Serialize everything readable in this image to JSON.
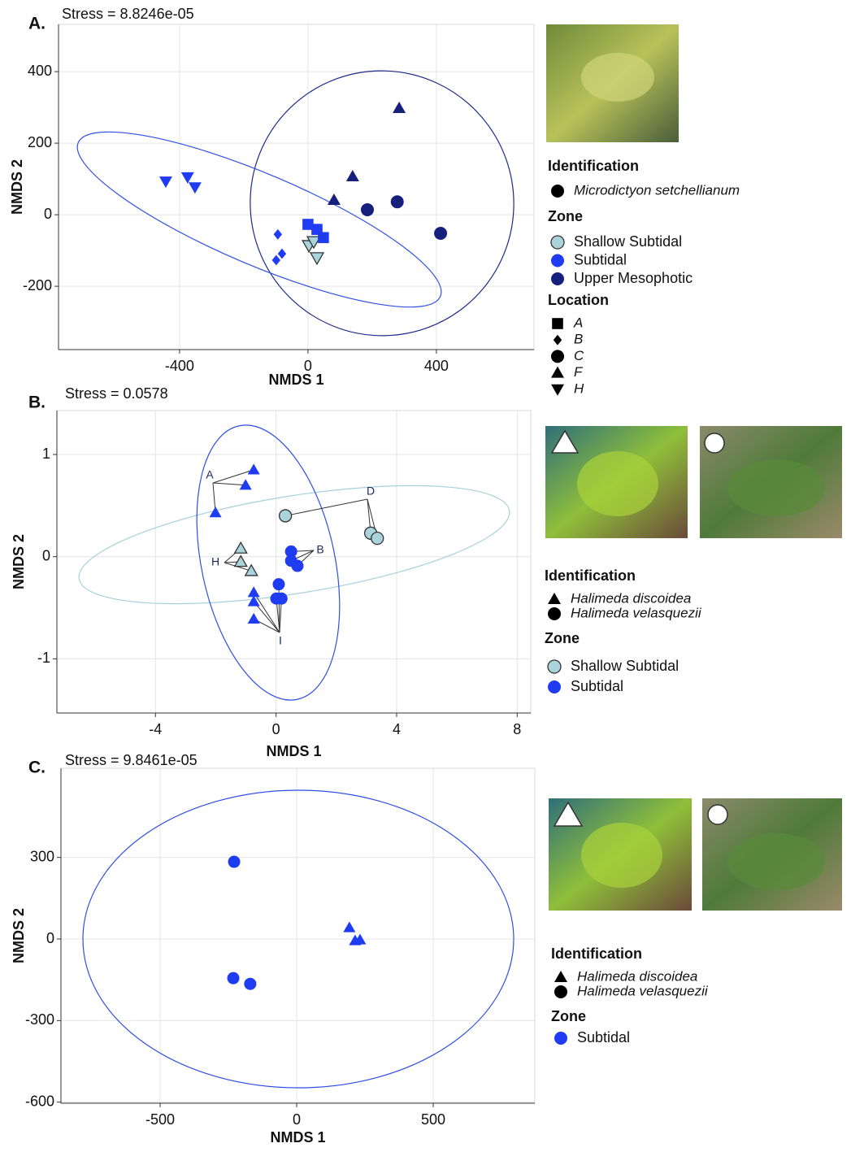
{
  "chart_data": [
    {
      "type": "scatter",
      "panel": "A.",
      "subtitle": "Stress = 8.8246e-05",
      "xlabel": "NMDS 1",
      "ylabel": "NMDS 2",
      "xlim": [
        -777,
        704
      ],
      "ylim": [
        -377,
        532
      ],
      "xticks": [
        -400,
        0,
        400
      ],
      "yticks": [
        -200,
        0,
        200,
        400
      ],
      "grid": true,
      "series": [
        {
          "marker": "triangle-down",
          "color": "#1f3cf2",
          "x": [
            -443,
            -375,
            -352
          ],
          "values": [
            93,
            105,
            77
          ]
        },
        {
          "marker": "triangle-down",
          "color": "#abd3dc",
          "edgecolor": "#333333",
          "x": [
            3,
            18,
            28
          ],
          "values": [
            -86,
            -75,
            -120
          ]
        },
        {
          "marker": "square",
          "color": "#1f3cf2",
          "x": [
            0,
            28,
            48
          ],
          "values": [
            -27,
            -41,
            -64
          ]
        },
        {
          "marker": "diamond",
          "color": "#1f3cf2",
          "x": [
            -94,
            -81,
            -99
          ],
          "values": [
            -55,
            -109,
            -127
          ]
        },
        {
          "marker": "triangle",
          "color": "#16207c",
          "x": [
            284,
            139,
            81
          ],
          "values": [
            298,
            107,
            41
          ]
        },
        {
          "marker": "circle",
          "color": "#16207c",
          "x": [
            185,
            278,
            413
          ],
          "values": [
            14,
            36,
            -52
          ]
        }
      ],
      "legend": [
        {
          "title": "Identification",
          "italic": true,
          "entries": [
            {
              "label": "Microdictyon setchellianum",
              "marker": "circle",
              "color": "#000000"
            }
          ]
        },
        {
          "title": "Zone",
          "entries": [
            {
              "label": "Shallow Subtidal",
              "marker": "circle",
              "color": "#abd3dc",
              "edgecolor": "#333333"
            },
            {
              "label": "Subtidal",
              "marker": "circle",
              "color": "#1f3cf2"
            },
            {
              "label": "Upper Mesophotic",
              "marker": "circle",
              "color": "#16207c"
            }
          ]
        },
        {
          "title": "Location",
          "italic": true,
          "entries": [
            {
              "label": "A",
              "marker": "square",
              "color": "#000000"
            },
            {
              "label": "B",
              "marker": "diamond",
              "color": "#000000"
            },
            {
              "label": "C",
              "marker": "circle",
              "color": "#000000"
            },
            {
              "label": "F",
              "marker": "triangle",
              "color": "#000000"
            },
            {
              "label": "H",
              "marker": "triangle-down",
              "color": "#000000"
            }
          ]
        }
      ]
    },
    {
      "type": "scatter",
      "panel": "B.",
      "subtitle": "Stress = 0.0578",
      "xlabel": "NMDS 1",
      "ylabel": "NMDS 2",
      "xlim": [
        -7.27,
        8.45
      ],
      "ylim": [
        -1.53,
        1.43
      ],
      "xticks": [
        -4,
        0,
        4,
        8
      ],
      "yticks": [
        -1,
        0,
        1
      ],
      "grid": true,
      "series": [
        {
          "marker": "triangle",
          "color": "#1f3cf2",
          "x": [
            -0.74,
            -1.01,
            -2.01,
            -0.74,
            -0.74,
            -0.74
          ],
          "values": [
            0.85,
            0.7,
            0.43,
            -0.35,
            -0.44,
            -0.61
          ]
        },
        {
          "marker": "triangle",
          "color": "#abd3dc",
          "edgecolor": "#333333",
          "x": [
            -1.17,
            -1.17,
            -0.82
          ],
          "values": [
            0.08,
            -0.05,
            -0.14
          ]
        },
        {
          "marker": "circle",
          "color": "#abd3dc",
          "edgecolor": "#333333",
          "x": [
            0.31,
            3.14,
            3.36
          ],
          "values": [
            0.4,
            0.23,
            0.18
          ]
        },
        {
          "marker": "circle",
          "color": "#1f3cf2",
          "x": [
            0.5,
            0.5,
            0.71,
            0.09,
            0.01,
            0.18
          ],
          "values": [
            0.05,
            -0.04,
            -0.09,
            -0.27,
            -0.41,
            -0.41
          ]
        }
      ],
      "annotations": [
        "A",
        "D",
        "H",
        "B",
        "I"
      ],
      "legend": [
        {
          "title": "Identification",
          "italic": true,
          "entries": [
            {
              "label": "Halimeda discoidea",
              "marker": "triangle",
              "color": "#000000"
            },
            {
              "label": "Halimeda velasquezii",
              "marker": "circle",
              "color": "#000000"
            }
          ]
        },
        {
          "title": "Zone",
          "entries": [
            {
              "label": "Shallow Subtidal",
              "marker": "circle",
              "color": "#abd3dc",
              "edgecolor": "#333333"
            },
            {
              "label": "Subtidal",
              "marker": "circle",
              "color": "#1f3cf2"
            }
          ]
        }
      ]
    },
    {
      "type": "scatter",
      "panel": "C.",
      "subtitle": "Stress = 9.8461e-05",
      "xlabel": "NMDS 1",
      "ylabel": "NMDS 2",
      "xlim": [
        -863,
        872
      ],
      "ylim": [
        -604,
        628
      ],
      "xticks": [
        -500,
        0,
        500
      ],
      "yticks": [
        -600,
        -300,
        0,
        300
      ],
      "grid": true,
      "series": [
        {
          "marker": "circle",
          "color": "#1f3cf2",
          "x": [
            -229,
            -232,
            -170
          ],
          "values": [
            284,
            -144,
            -165
          ]
        },
        {
          "marker": "triangle",
          "color": "#1f3cf2",
          "x": [
            193,
            214,
            232
          ],
          "values": [
            42,
            -6,
            -3
          ]
        }
      ],
      "legend": [
        {
          "title": "Identification",
          "italic": true,
          "entries": [
            {
              "label": "Halimeda discoidea",
              "marker": "triangle",
              "color": "#000000"
            },
            {
              "label": "Halimeda velasquezii",
              "marker": "circle",
              "color": "#000000"
            }
          ]
        },
        {
          "title": "Zone",
          "entries": [
            {
              "label": "Subtidal",
              "marker": "circle",
              "color": "#1f3cf2"
            }
          ]
        }
      ]
    }
  ]
}
